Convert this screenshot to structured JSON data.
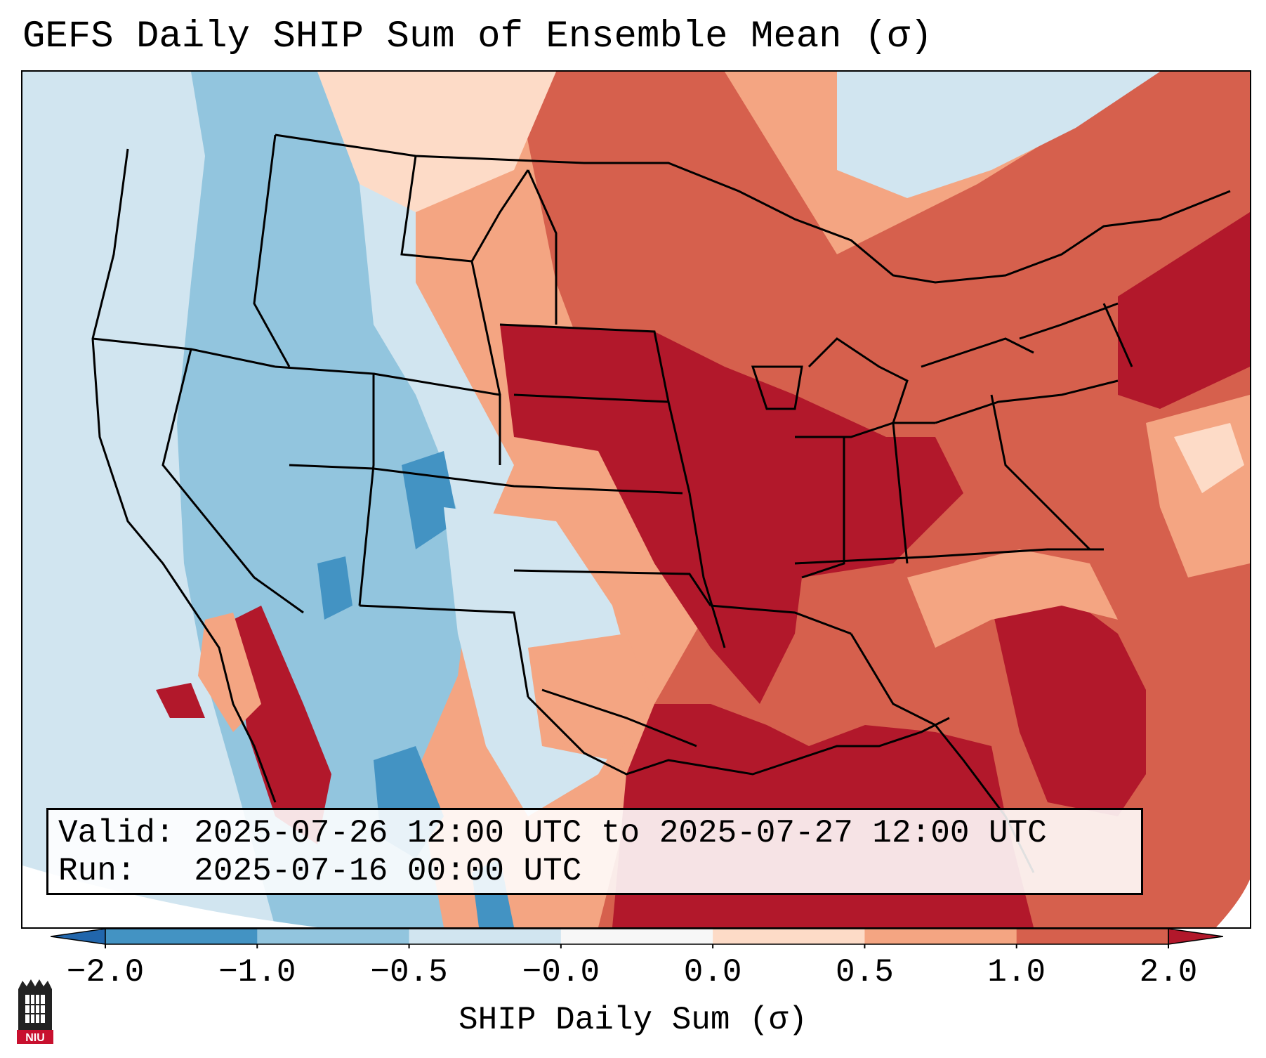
{
  "title": "GEFS Daily SHIP Sum of Ensemble Mean (σ)",
  "info": {
    "valid_label": "Valid:",
    "valid_value": "2025-07-26 12:00 UTC to 2025-07-27 12:00 UTC",
    "run_label": "Run:",
    "run_value": "2025-07-16 00:00 UTC"
  },
  "colorbar": {
    "label": "SHIP Daily Sum (σ)",
    "ticks": [
      "−2.0",
      "−1.0",
      "−0.5",
      "−0.0",
      "0.0",
      "0.5",
      "1.0",
      "2.0"
    ],
    "bins": [
      {
        "range": "< -2.0",
        "color": "#2166ac"
      },
      {
        "range": "-2.0 to -1.0",
        "color": "#4393c3"
      },
      {
        "range": "-1.0 to -0.5",
        "color": "#92c5de"
      },
      {
        "range": "-0.5 to -0.0",
        "color": "#d1e5f0"
      },
      {
        "range": "-0.0 to 0.0",
        "color": "#f7f7f7"
      },
      {
        "range": "0.0 to 0.5",
        "color": "#fddbc7"
      },
      {
        "range": "0.5 to 1.0",
        "color": "#f4a582"
      },
      {
        "range": "1.0 to 2.0",
        "color": "#d6604d"
      },
      {
        "range": "> 2.0",
        "color": "#b2182b"
      }
    ]
  },
  "logo": {
    "text": "NIU",
    "icon": "niu-logo-icon"
  }
}
